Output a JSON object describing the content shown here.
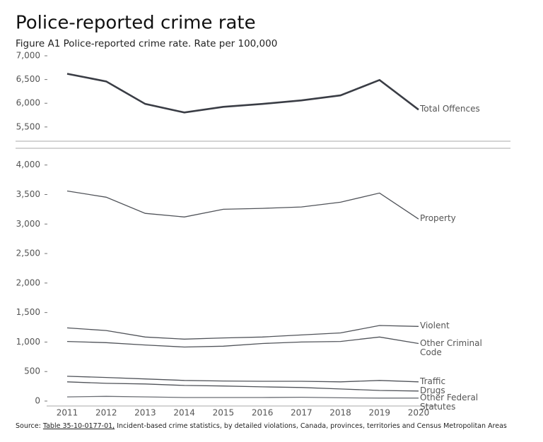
{
  "chart_data": [
    {
      "type": "line",
      "title": "Police-reported crime rate",
      "subtitle": "Figure A1 Police-reported crime rate. Rate per 100,000",
      "categories": [
        "2011",
        "2012",
        "2013",
        "2014",
        "2015",
        "2016",
        "2017",
        "2018",
        "2019",
        "2020"
      ],
      "ylim": [
        5200,
        7000
      ],
      "yticks": [
        {
          "value": 5500,
          "label": "5,500"
        },
        {
          "value": 6000,
          "label": "6,000"
        },
        {
          "value": 6500,
          "label": "6,500"
        },
        {
          "value": 7000,
          "label": "7,000"
        }
      ],
      "series": [
        {
          "name": "Total Offences",
          "color": "#3a3d45",
          "values": [
            6620,
            6460,
            5985,
            5805,
            5925,
            5985,
            6060,
            6165,
            6490,
            5865
          ]
        }
      ]
    },
    {
      "type": "line",
      "categories": [
        "2011",
        "2012",
        "2013",
        "2014",
        "2015",
        "2016",
        "2017",
        "2018",
        "2019",
        "2020"
      ],
      "ylim": [
        0,
        4200
      ],
      "yticks": [
        0,
        500,
        {
          "value": 1000,
          "label": "1,000"
        },
        {
          "value": 1500,
          "label": "1,500"
        },
        {
          "value": 2000,
          "label": "2,000"
        },
        {
          "value": 2500,
          "label": "2,500"
        },
        {
          "value": 3000,
          "label": "3,000"
        },
        {
          "value": 3500,
          "label": "3,500"
        },
        {
          "value": 4000,
          "label": "4,000"
        }
      ],
      "series": [
        {
          "name": "Property",
          "color": "#505359",
          "values": [
            3560,
            3455,
            3180,
            3120,
            3250,
            3265,
            3290,
            3370,
            3525,
            3085
          ]
        },
        {
          "name": "Violent",
          "color": "#505359",
          "values": [
            1240,
            1195,
            1085,
            1050,
            1070,
            1085,
            1120,
            1155,
            1280,
            1265
          ]
        },
        {
          "name": "Other Criminal Code",
          "color": "#505359",
          "values": [
            1010,
            990,
            950,
            915,
            930,
            975,
            1000,
            1010,
            1085,
            975
          ]
        },
        {
          "name": "Traffic",
          "color": "#505359",
          "values": [
            420,
            400,
            375,
            350,
            340,
            335,
            335,
            325,
            350,
            325
          ]
        },
        {
          "name": "Drugs",
          "color": "#505359",
          "values": [
            325,
            300,
            290,
            265,
            255,
            240,
            230,
            205,
            180,
            170
          ]
        },
        {
          "name": "Other Federal Statutes",
          "color": "#6a6d73",
          "values": [
            70,
            80,
            70,
            60,
            60,
            60,
            65,
            55,
            50,
            50
          ]
        }
      ]
    }
  ],
  "source": {
    "prefix": "Source: ",
    "link": "Table 35-10-0177-01,",
    "text": " Incident-based crime statistics, by detailed violations, Canada, provinces, territories and Census Metropolitan Areas"
  }
}
